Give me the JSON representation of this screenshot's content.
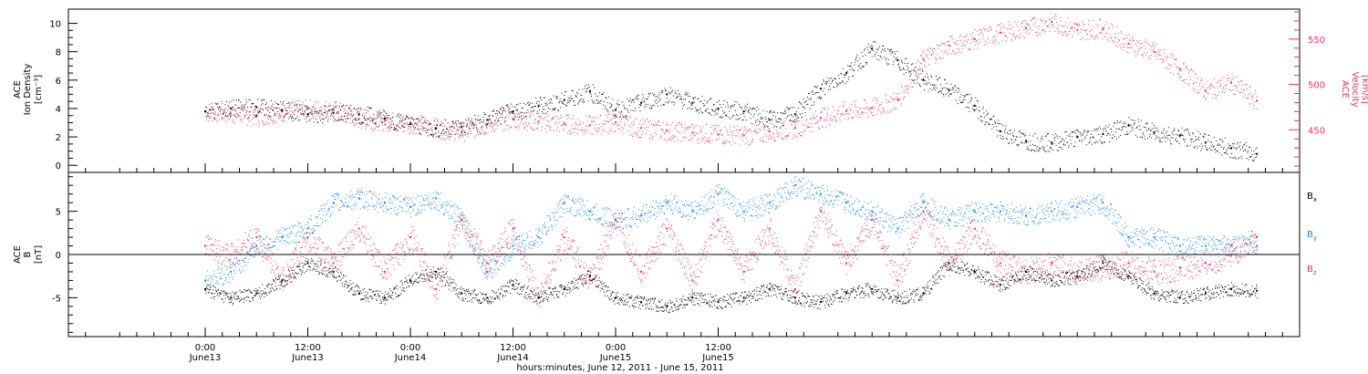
{
  "chart_data": [
    {
      "type": "scatter",
      "panel": "top",
      "left_axis": {
        "label_lines": [
          "ACE",
          "Ion Density",
          "[cm⁻³]"
        ],
        "ylim": [
          -0.5,
          11
        ],
        "ticks": [
          0,
          2,
          4,
          6,
          8,
          10
        ],
        "tick_labels": [
          "0",
          "2",
          "4",
          "6",
          "8",
          "10"
        ]
      },
      "right_axis": {
        "label_lines": [
          "ACE",
          "Velocity",
          "[km/s]"
        ],
        "ylim": [
          403,
          583
        ],
        "ticks": [
          450,
          500,
          550
        ],
        "tick_labels": [
          "450",
          "500",
          "550"
        ],
        "color": "#e8335c"
      },
      "series": [
        {
          "axis": "left",
          "color": "#000000",
          "x": [
            0,
            3,
            6,
            9,
            12,
            15,
            18,
            21,
            24,
            27,
            30,
            33,
            36,
            39,
            42,
            45,
            48,
            51,
            54,
            57,
            60,
            63,
            66,
            69,
            72,
            75,
            78,
            81,
            84,
            87,
            90,
            93,
            96,
            99,
            102,
            105,
            108,
            111,
            114,
            117,
            120,
            123
          ],
          "y": [
            3.8,
            4.0,
            4.1,
            3.9,
            3.6,
            3.7,
            3.6,
            3.3,
            2.9,
            2.6,
            2.7,
            3.2,
            3.8,
            4.2,
            4.6,
            5.2,
            3.9,
            4.4,
            5.0,
            4.4,
            4.0,
            3.8,
            3.2,
            3.6,
            5.4,
            6.5,
            8.2,
            7.4,
            6.0,
            5.3,
            4.2,
            2.4,
            1.7,
            1.6,
            2.0,
            2.2,
            2.8,
            2.3,
            2.1,
            1.6,
            1.2,
            0.8
          ]
        },
        {
          "axis": "right",
          "color": "#e8335c",
          "x": [
            0,
            3,
            6,
            9,
            12,
            15,
            18,
            21,
            24,
            27,
            30,
            33,
            36,
            39,
            42,
            45,
            48,
            51,
            54,
            57,
            60,
            63,
            66,
            69,
            72,
            75,
            78,
            81,
            84,
            87,
            90,
            93,
            96,
            99,
            102,
            105,
            108,
            111,
            114,
            117,
            120,
            123
          ],
          "y": [
            470,
            468,
            465,
            470,
            473,
            472,
            462,
            460,
            458,
            452,
            448,
            456,
            462,
            459,
            457,
            455,
            458,
            452,
            449,
            447,
            445,
            444,
            448,
            452,
            463,
            471,
            474,
            483,
            528,
            543,
            550,
            557,
            562,
            569,
            560,
            562,
            545,
            536,
            517,
            493,
            502,
            482
          ]
        }
      ]
    },
    {
      "type": "scatter",
      "panel": "bottom",
      "left_axis": {
        "label_lines": [
          "ACE",
          "B",
          "[nT]"
        ],
        "ylim": [
          -9.5,
          9.5
        ],
        "ticks": [
          -5,
          0,
          5
        ],
        "tick_labels": [
          "-5",
          "0",
          "5"
        ],
        "zero_line": true
      },
      "legend": [
        {
          "name": "B",
          "sub": "x",
          "color": "#000000"
        },
        {
          "name": "B",
          "sub": "y",
          "color": "#1c87e6"
        },
        {
          "name": "B",
          "sub": "z",
          "color": "#e8335c"
        }
      ],
      "series": [
        {
          "name": "Bx",
          "color": "#000000",
          "x": [
            0,
            3,
            6,
            9,
            12,
            15,
            18,
            21,
            24,
            27,
            30,
            33,
            36,
            39,
            42,
            45,
            48,
            51,
            54,
            57,
            60,
            63,
            66,
            69,
            72,
            75,
            78,
            81,
            84,
            87,
            90,
            93,
            96,
            99,
            102,
            105,
            108,
            111,
            114,
            117,
            120,
            123
          ],
          "y": [
            -4,
            -5,
            -4.5,
            -3,
            -1,
            -2,
            -4.5,
            -5,
            -3,
            -2,
            -4.5,
            -5,
            -3.5,
            -5,
            -4,
            -2.5,
            -5,
            -5.5,
            -6,
            -5,
            -5.5,
            -5,
            -4,
            -5,
            -5.5,
            -4.5,
            -4,
            -5,
            -4.5,
            -1,
            -2,
            -3.5,
            -2,
            -3,
            -2.5,
            -1,
            -2.5,
            -4.5,
            -5,
            -4.5,
            -4,
            -4.2
          ]
        },
        {
          "name": "By",
          "color": "#1c87e6",
          "x": [
            0,
            3,
            6,
            9,
            12,
            15,
            18,
            21,
            24,
            27,
            30,
            33,
            36,
            39,
            42,
            45,
            48,
            51,
            54,
            57,
            60,
            63,
            66,
            69,
            72,
            75,
            78,
            81,
            84,
            87,
            90,
            93,
            96,
            99,
            102,
            105,
            108,
            111,
            114,
            117,
            120,
            123
          ],
          "y": [
            -3,
            -2,
            1,
            2,
            3,
            6,
            6.5,
            6,
            5.5,
            6.5,
            4,
            -2,
            1,
            2,
            6,
            5,
            4,
            4.5,
            6,
            5,
            7,
            5,
            6,
            8,
            7,
            6,
            5,
            3,
            6,
            4,
            5,
            5,
            4.5,
            5,
            5.5,
            6,
            2,
            2,
            1,
            1,
            1,
            1
          ]
        },
        {
          "name": "Bz",
          "color": "#e8335c",
          "x": [
            0,
            3,
            6,
            9,
            12,
            15,
            18,
            21,
            24,
            27,
            30,
            33,
            36,
            39,
            42,
            45,
            48,
            51,
            54,
            57,
            60,
            63,
            66,
            69,
            72,
            75,
            78,
            81,
            84,
            87,
            90,
            93,
            96,
            99,
            102,
            105,
            108,
            111,
            114,
            117,
            120,
            123
          ],
          "y": [
            1,
            0,
            2,
            -3,
            2,
            -1,
            3,
            -2,
            2,
            -4,
            4,
            -1,
            3,
            -5,
            2,
            -3,
            4,
            -2,
            3,
            -3,
            4,
            -2,
            3,
            -4,
            5,
            -1,
            4,
            -3,
            5,
            -1,
            3,
            -1,
            -2,
            -1,
            -2,
            -1.5,
            -1,
            -2,
            -1.5,
            -1,
            0,
            2
          ]
        }
      ]
    }
  ],
  "x_axis": {
    "xlim": [
      -16,
      128
    ],
    "ticks": [
      {
        "x": 0,
        "top": "0:00",
        "bottom": "June13"
      },
      {
        "x": 12,
        "top": "12:00",
        "bottom": "June13"
      },
      {
        "x": 24,
        "top": "0:00",
        "bottom": "June14"
      },
      {
        "x": 36,
        "top": "12:00",
        "bottom": "June14"
      },
      {
        "x": 48,
        "top": "0:00",
        "bottom": "June15"
      },
      {
        "x": 60,
        "top": "12:00",
        "bottom": "June15"
      }
    ],
    "title": "hours:minutes, June 12, 2011 - June 15, 2011"
  }
}
